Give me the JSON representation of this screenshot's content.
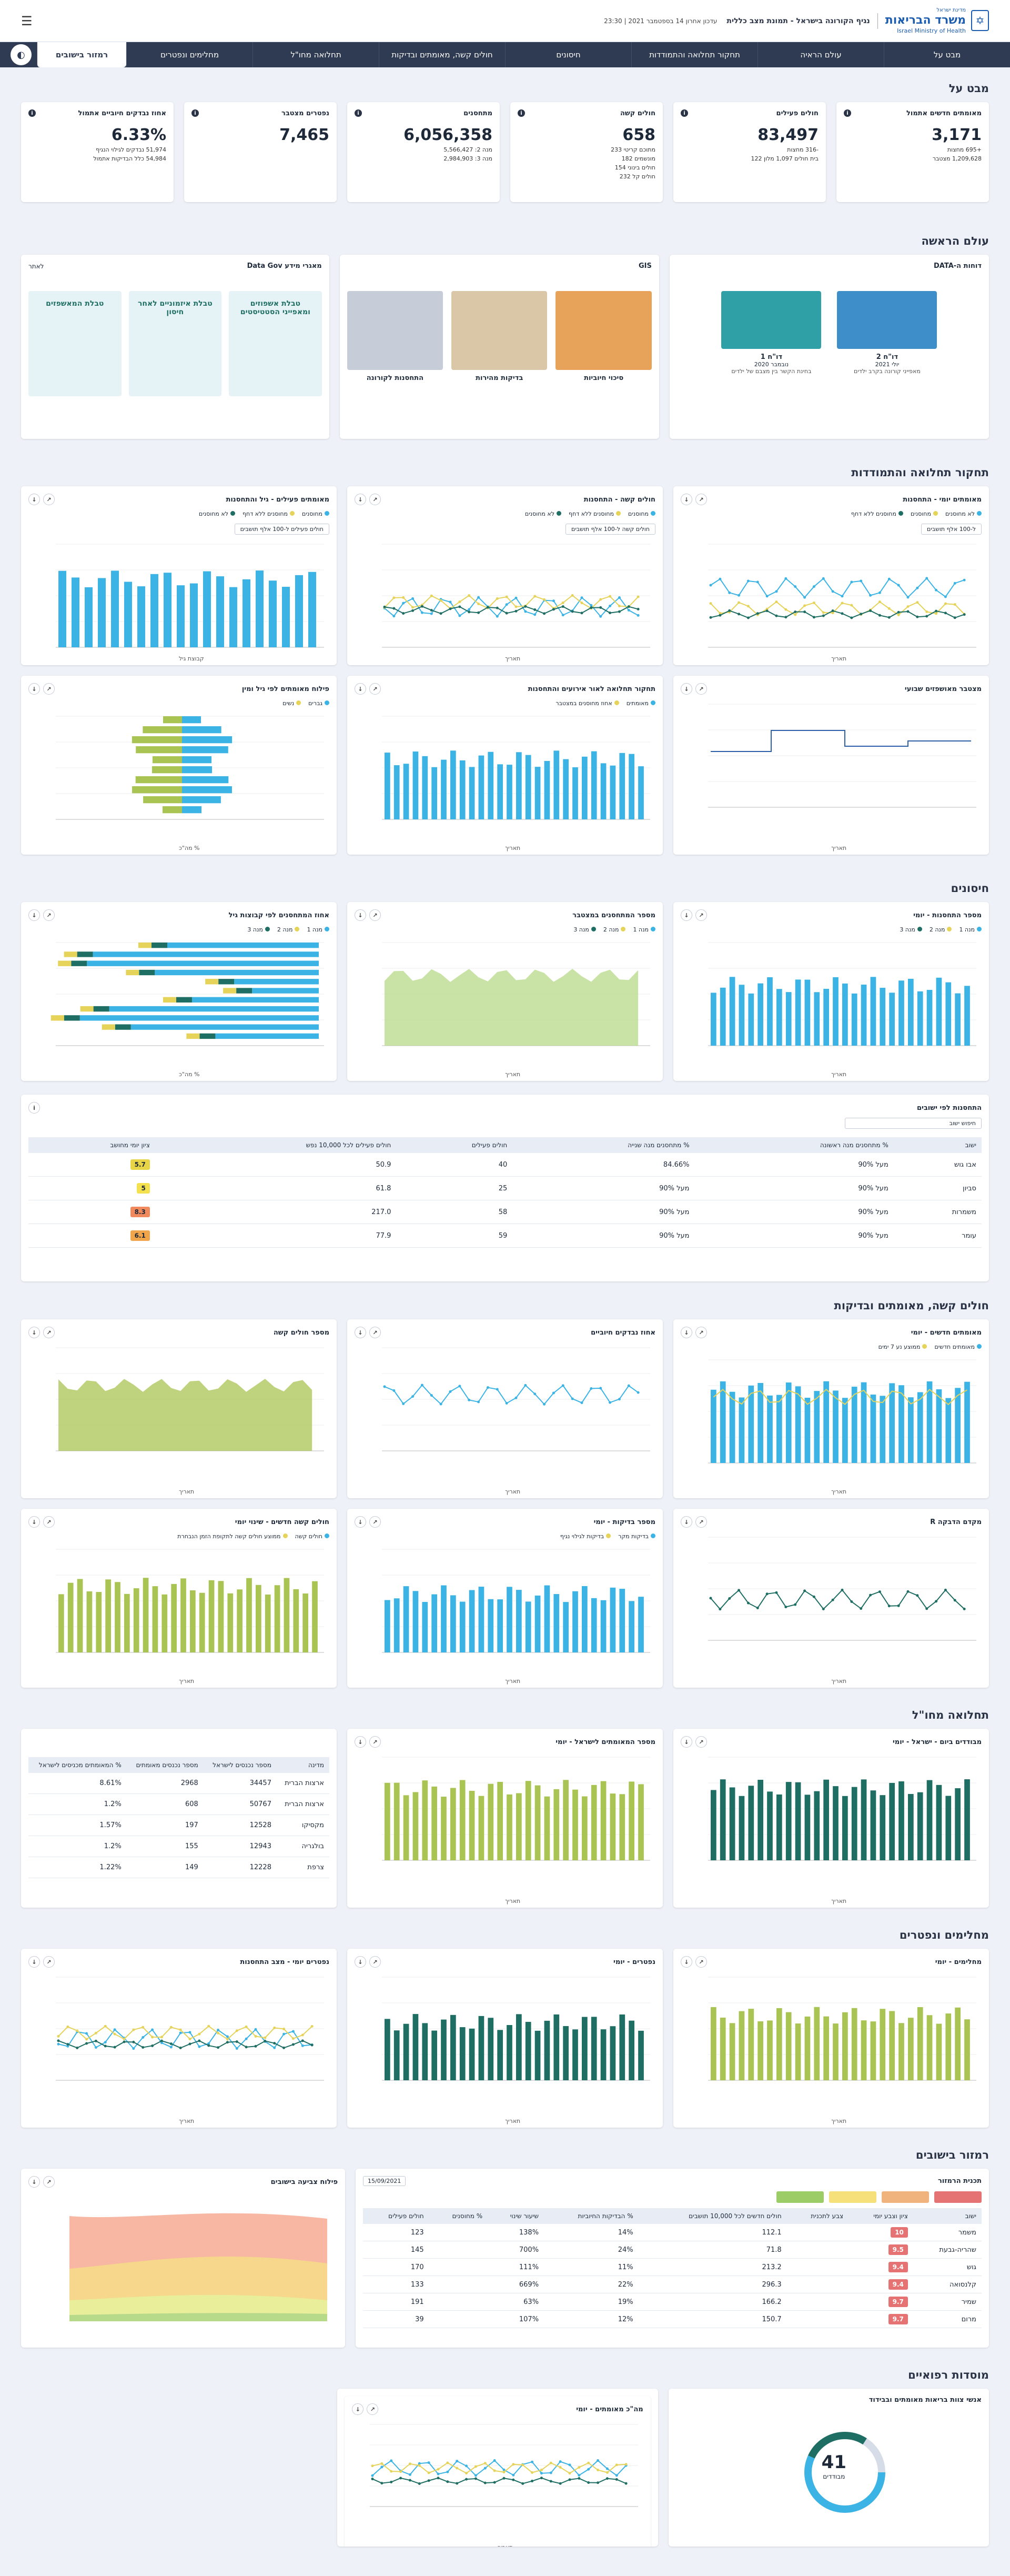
{
  "header": {
    "ministry_he": "משרד הבריאות",
    "ministry_en": "Israel Ministry of Health",
    "gov": "מדינת ישראל",
    "app_title": "נגיף הקורונה בישראל - תמונת מצב כללית",
    "updated": "עדכון אחרון 14 בספטמבר 2021 | 23:30"
  },
  "nav": {
    "items": [
      "מבט על",
      "עולם הראיה",
      "תחקור תחלואה והתמודדות",
      "חיסונים",
      "חולים קשה, מאומתים ובדיקות",
      "תחלואה מחו\"ל",
      "מחלימים ונפטרים",
      "רמזור בישובים"
    ],
    "active_index": 7
  },
  "sections": {
    "overview": "מבט על",
    "world": "עולם הראשה",
    "exploration": "תחקור תחלואה והתמודדות",
    "vaccines": "חיסונים",
    "severe": "חולים קשה, מאומתים ובדיקות",
    "abroad": "תחלואה מחו\"ל",
    "recovered": "מחלימים ונפטרים",
    "traffic": "רמזור בישובים",
    "spread": "מוסדות רפואיים"
  },
  "kpis": [
    {
      "title": "מאומתים חדשים אתמול",
      "value": "3,171",
      "lines": [
        "+695 מחצות",
        "1,209,628 מצטבר"
      ]
    },
    {
      "title": "חולים פעילים",
      "value": "83,497",
      "lines": [
        "-316 מחצות",
        "בית חולים 1,097  מלון 122"
      ]
    },
    {
      "title": "חולים קשה",
      "value": "658",
      "lines": [
        "מתוכם קריטי 233",
        "מונשמים 182",
        "חולים בינוני 154",
        "חולים קל 232"
      ]
    },
    {
      "title": "מתחסנים",
      "value": "6,056,358",
      "lines": [
        "מנה 2: 5,566,427",
        "מנה 3: 2,984,903"
      ]
    },
    {
      "title": "נפטרים מצטבר",
      "value": "7,465",
      "lines": []
    },
    {
      "title": "אחוז נבדקים חיוביים אתמול",
      "value": "6.33%",
      "lines": [
        "51,974 נבדקים לגילוי הנגיף",
        "54,984 כלל הבדיקות אתמול"
      ]
    }
  ],
  "world": {
    "reports_title": "דוחות ה-DATA",
    "report1": {
      "title": "דו\"ח 2",
      "date": "יולי 2021",
      "desc": "מאפייני קורונה בקרב ילדים"
    },
    "report2": {
      "title": "דו\"ח 1",
      "date": "נובמבר 2020",
      "desc": "בחינת הקשר בין מצבם של ילדים"
    },
    "gis_title": "GIS",
    "map1": "סיכוי חיוביות",
    "map2": "בדיקות מהירות",
    "map3": "התחסנות לקורונה",
    "govdata_title": "מאגרי מידע Data Gov",
    "govdata_link": "לאתר",
    "tables": [
      "טבלת אשפוזים ומאפייני הסטטיסטים",
      "טבלת איזמוניים לאחר חיסון",
      "טבלת המאשפזים"
    ]
  },
  "charts": {
    "c1": {
      "title": "מאומתים יומי - התחסנות",
      "legend": [
        "לא מחוסנים",
        "מחוסנים",
        "מחוסנים ללא דחף"
      ],
      "range": "ל-100 אלף תושבים",
      "xlabel": "תאריך"
    },
    "c2": {
      "title": "חולים קשה - התחסנות",
      "legend": [
        "מחוסנים",
        "מחוסנים ללא דחף",
        "לא מחוסנים"
      ],
      "range": "חולים קשה ל-100 אלף תושבים",
      "xlabel": "תאריך"
    },
    "c3": {
      "title": "מאומתים פעילים - גיל והתחסנות",
      "legend": [
        "מחוסנים",
        "מחוסנים ללא דחף",
        "לא מחוסנים"
      ],
      "range": "חולים פעילים ל-100 אלף תושבים",
      "xlabel": "קבוצת גיל"
    },
    "c4": {
      "title": "מצטבר מאושפזים שבועי",
      "xlabel": "תאריך"
    },
    "c5": {
      "title": "תחקור תחלואה לאור אירועים והתחסנות",
      "legend": [
        "מאומתים",
        "אחוז מחוסנים במצטבר"
      ],
      "xlabel": "תאריך"
    },
    "c6": {
      "title": "פילוח מאומתים לפי גיל ומין",
      "legend": [
        "גברים",
        "נשים"
      ],
      "xlabel": "% מה\"כ",
      "ylabel": "קבוצת גיל"
    },
    "v1": {
      "title": "מספר התחסנות - יומי",
      "legend": [
        "מנה 1",
        "מנה 2",
        "מנה 3"
      ],
      "xlabel": "תאריך"
    },
    "v2": {
      "title": "מספר המתחסנים במצטבר",
      "legend": [
        "מנה 1",
        "מנה 2",
        "מנה 3"
      ],
      "xlabel": "תאריך"
    },
    "v3": {
      "title": "אחוז המתחסנים לפי קבוצות גיל",
      "legend": [
        "מנה 1",
        "מנה 2",
        "מנה 3"
      ],
      "xlabel": "% מה\"כ"
    },
    "s1": {
      "title": "מאומתים חדשים - יומי",
      "legend": [
        "מאומתים חדשים",
        "ממוצע נע 7 ימים"
      ],
      "xlabel": "תאריך"
    },
    "s2": {
      "title": "אחוז נבדקים חיוביים",
      "xlabel": "תאריך"
    },
    "s3": {
      "title": "מספר חולים קשה",
      "xlabel": "תאריך"
    },
    "s4": {
      "title": "מקדם הדבקה R",
      "xlabel": "תאריך"
    },
    "s5": {
      "title": "מספר בדיקות - יומי",
      "legend": [
        "בדיקות מקר",
        "בדיקות לגילוי נגיף"
      ],
      "xlabel": "תאריך"
    },
    "s6": {
      "title": "חולים קשה חדשים - שינוי יומי",
      "legend": [
        "חולים קשה",
        "ממוצע חולים קשה לתקופת הזמן הנבחרת"
      ],
      "xlabel": "תאריך"
    },
    "a1": {
      "title": "מבודדים ביום - ישראל - יומי",
      "xlabel": "תאריך"
    },
    "a2": {
      "title": "מספר המאומתים לישראל - יומי",
      "xlabel": "תאריך"
    },
    "r1": {
      "title": "מחלימים - יומי",
      "xlabel": "תאריך"
    },
    "r2": {
      "title": "נפטרים - יומי",
      "xlabel": "תאריך"
    },
    "r3": {
      "title": "נפטרים יומי - מצב התחסנות",
      "xlabel": "תאריך"
    },
    "t2": {
      "title": "פילוח צביעה בישובים",
      "xlabel": "תאריך"
    },
    "m1": {
      "title": "מה\"כ מאומתים - יומי",
      "xlabel": "תאריך"
    },
    "m2": {
      "title": "אנשי צוות בריאות מאומתים ובבידוד",
      "center_value": "41",
      "center_label": "מבודדים"
    }
  },
  "cities": {
    "title": "התחסנות לפי ישובים",
    "search_placeholder": "חיפוש ישוב",
    "columns": [
      "ישוב",
      "% מתחסנים מנה ראשונה",
      "% מתחסנים מנה שנייה",
      "חולים פעילים",
      "חולים פעילים לכל 10,000 נפש",
      "ציון יומי מחושב"
    ],
    "rows": [
      [
        "אבו גוש",
        "מעל 90%",
        "84.66%",
        "40",
        "50.9",
        "5.7"
      ],
      [
        "סביון",
        "מעל 90%",
        "מעל 90%",
        "25",
        "61.8",
        "5"
      ],
      [
        "משמרות",
        "מעל 90%",
        "מעל 90%",
        "58",
        "217.0",
        "8.3"
      ],
      [
        "עומר",
        "מעל 90%",
        "מעל 90%",
        "59",
        "77.9",
        "6.1"
      ]
    ]
  },
  "abroad_table": {
    "columns": [
      "מדינה",
      "מספר נכנסים לישראל",
      "מספר נכנסים מאומתים",
      "% המאומתים מכניסים לישראל"
    ],
    "rows": [
      [
        "ארצות הברית",
        "34457",
        "2968",
        "8.61%"
      ],
      [
        "ארצות הברית",
        "50767",
        "608",
        "1.2%"
      ],
      [
        "מקסיקו",
        "12528",
        "197",
        "1.57%"
      ],
      [
        "בולגריה",
        "12943",
        "155",
        "1.2%"
      ],
      [
        "צרפת",
        "12228",
        "149",
        "1.22%"
      ]
    ]
  },
  "traffic": {
    "title": "תכנית הרמזור",
    "date_label": "15/09/2021",
    "columns": [
      "ישוב",
      "ציון וצבע יומי",
      "צבע לתכנית",
      "חולים חדשים לכל 10,000 תושבים",
      "% הבדיקות החיוביות",
      "שיעור שינוי",
      "% מחוסנים",
      "חולים פעילים"
    ],
    "rows": [
      [
        "משמר",
        "10",
        "",
        "112.1",
        "14%",
        "138%",
        "",
        "123"
      ],
      [
        "שהריה-גבעת",
        "9.5",
        "",
        "71.8",
        "24%",
        "700%",
        "",
        "145"
      ],
      [
        "גוש",
        "9.4",
        "",
        "213.2",
        "11%",
        "111%",
        "",
        "170"
      ],
      [
        "קלנסואה",
        "9.4",
        "",
        "296.3",
        "22%",
        "669%",
        "",
        "133"
      ],
      [
        "שמיר",
        "9.7",
        "",
        "166.2",
        "19%",
        "63%",
        "",
        "191"
      ],
      [
        "מרום",
        "9.7",
        "",
        "150.7",
        "12%",
        "107%",
        "",
        "39"
      ]
    ]
  },
  "colors": {
    "nav": "#2f3b52",
    "blue": "#3bb4e5",
    "green": "#1f6e63",
    "yellow": "#e6d35a",
    "olive": "#a9c453",
    "red": "#d9534f"
  }
}
